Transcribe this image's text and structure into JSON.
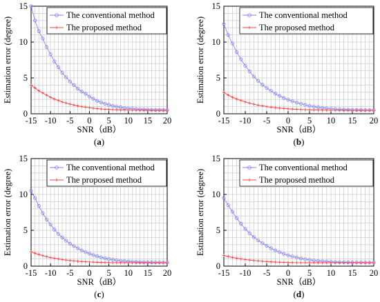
{
  "chart_data": [
    {
      "panel": "a",
      "type": "line",
      "caption": "(a)",
      "xlabel": "SNR（dB）",
      "ylabel": "Estimation error (degree)",
      "xlim": [
        -15,
        20
      ],
      "ylim": [
        0,
        15
      ],
      "xticks": [
        "-15",
        "-10",
        "-5",
        "0",
        "5",
        "10",
        "15",
        "20"
      ],
      "yticks": [
        "0",
        "5",
        "10",
        "15"
      ],
      "grid": true,
      "legend_position": "top-right",
      "x": [
        -15,
        -14,
        -13,
        -12,
        -11,
        -10,
        -9,
        -8,
        -7,
        -6,
        -5,
        -4,
        -3,
        -2,
        -1,
        0,
        1,
        2,
        3,
        4,
        5,
        6,
        7,
        8,
        9,
        10,
        11,
        12,
        13,
        14,
        15,
        16,
        17,
        18,
        19,
        20
      ],
      "series": [
        {
          "name": "The conventional method",
          "color": "#8080ff",
          "marker": "circle",
          "values": [
            15.0,
            13.0,
            11.5,
            10.5,
            9.3,
            8.3,
            7.3,
            6.5,
            5.7,
            5.1,
            4.5,
            4.0,
            3.5,
            3.1,
            2.8,
            2.4,
            2.1,
            1.8,
            1.6,
            1.4,
            1.25,
            1.1,
            1.0,
            0.9,
            0.8,
            0.75,
            0.7,
            0.66,
            0.63,
            0.6,
            0.58,
            0.56,
            0.55,
            0.54,
            0.53,
            0.52
          ]
        },
        {
          "name": "The proposed method",
          "color": "#ff4040",
          "marker": "plus",
          "values": [
            4.0,
            3.6,
            3.2,
            2.9,
            2.6,
            2.3,
            2.05,
            1.85,
            1.65,
            1.5,
            1.35,
            1.22,
            1.1,
            1.0,
            0.92,
            0.85,
            0.78,
            0.72,
            0.67,
            0.63,
            0.6,
            0.57,
            0.55,
            0.53,
            0.52,
            0.51,
            0.5,
            0.5,
            0.49,
            0.49,
            0.48,
            0.48,
            0.48,
            0.47,
            0.47,
            0.47
          ]
        }
      ]
    },
    {
      "panel": "b",
      "type": "line",
      "caption": "(b)",
      "xlabel": "SNR（dB）",
      "ylabel": "Estimation error (degree)",
      "xlim": [
        -15,
        20
      ],
      "ylim": [
        0,
        15
      ],
      "xticks": [
        "-15",
        "-10",
        "-5",
        "0",
        "5",
        "10",
        "15",
        "20"
      ],
      "yticks": [
        "0",
        "5",
        "10",
        "15"
      ],
      "grid": true,
      "legend_position": "top-right",
      "x": [
        -15,
        -14,
        -13,
        -12,
        -11,
        -10,
        -9,
        -8,
        -7,
        -6,
        -5,
        -4,
        -3,
        -2,
        -1,
        0,
        1,
        2,
        3,
        4,
        5,
        6,
        7,
        8,
        9,
        10,
        11,
        12,
        13,
        14,
        15,
        16,
        17,
        18,
        19,
        20
      ],
      "series": [
        {
          "name": "The conventional method",
          "color": "#8080ff",
          "marker": "circle",
          "values": [
            12.5,
            11.0,
            9.8,
            8.6,
            7.6,
            6.7,
            5.9,
            5.2,
            4.6,
            4.05,
            3.6,
            3.2,
            2.8,
            2.5,
            2.2,
            1.95,
            1.75,
            1.55,
            1.4,
            1.25,
            1.1,
            1.0,
            0.9,
            0.82,
            0.76,
            0.7,
            0.66,
            0.62,
            0.59,
            0.57,
            0.55,
            0.54,
            0.53,
            0.52,
            0.52,
            0.51
          ]
        },
        {
          "name": "The proposed method",
          "color": "#ff4040",
          "marker": "plus",
          "values": [
            3.0,
            2.6,
            2.3,
            2.05,
            1.85,
            1.65,
            1.48,
            1.33,
            1.2,
            1.1,
            1.0,
            0.92,
            0.85,
            0.79,
            0.74,
            0.69,
            0.65,
            0.62,
            0.59,
            0.57,
            0.55,
            0.53,
            0.52,
            0.51,
            0.5,
            0.49,
            0.49,
            0.48,
            0.48,
            0.48,
            0.47,
            0.47,
            0.47,
            0.47,
            0.47,
            0.47
          ]
        }
      ]
    },
    {
      "panel": "c",
      "type": "line",
      "caption": "(c)",
      "xlabel": "SNR（dB）",
      "ylabel": "Estimation error (degree)",
      "xlim": [
        -15,
        20
      ],
      "ylim": [
        0,
        15
      ],
      "xticks": [
        "-15",
        "-10",
        "-5",
        "0",
        "5",
        "10",
        "15",
        "20"
      ],
      "yticks": [
        "0",
        "5",
        "10",
        "15"
      ],
      "grid": true,
      "legend_position": "top-right",
      "x": [
        -15,
        -14,
        -13,
        -12,
        -11,
        -10,
        -9,
        -8,
        -7,
        -6,
        -5,
        -4,
        -3,
        -2,
        -1,
        0,
        1,
        2,
        3,
        4,
        5,
        6,
        7,
        8,
        9,
        10,
        11,
        12,
        13,
        14,
        15,
        16,
        17,
        18,
        19,
        20
      ],
      "series": [
        {
          "name": "The conventional method",
          "color": "#8080ff",
          "marker": "circle",
          "values": [
            10.5,
            9.5,
            8.4,
            7.4,
            6.5,
            5.8,
            5.1,
            4.5,
            4.0,
            3.55,
            3.15,
            2.8,
            2.5,
            2.2,
            1.95,
            1.75,
            1.55,
            1.38,
            1.23,
            1.1,
            1.0,
            0.9,
            0.82,
            0.75,
            0.7,
            0.65,
            0.62,
            0.59,
            0.57,
            0.55,
            0.54,
            0.53,
            0.52,
            0.52,
            0.51,
            0.51
          ]
        },
        {
          "name": "The proposed method",
          "color": "#ff4040",
          "marker": "plus",
          "values": [
            2.0,
            1.8,
            1.62,
            1.47,
            1.33,
            1.2,
            1.1,
            1.0,
            0.92,
            0.85,
            0.79,
            0.73,
            0.68,
            0.64,
            0.61,
            0.58,
            0.56,
            0.54,
            0.52,
            0.51,
            0.5,
            0.49,
            0.49,
            0.48,
            0.48,
            0.48,
            0.47,
            0.47,
            0.47,
            0.47,
            0.47,
            0.47,
            0.47,
            0.47,
            0.47,
            0.47
          ]
        }
      ]
    },
    {
      "panel": "d",
      "type": "line",
      "caption": "(d)",
      "xlabel": "SNR（dB）",
      "ylabel": "Estimation error (degree)",
      "xlim": [
        -15,
        20
      ],
      "ylim": [
        0,
        15
      ],
      "xticks": [
        "-15",
        "-10",
        "-5",
        "0",
        "5",
        "10",
        "15",
        "20"
      ],
      "yticks": [
        "0",
        "5",
        "10",
        "15"
      ],
      "grid": true,
      "legend_position": "top-right",
      "x": [
        -15,
        -14,
        -13,
        -12,
        -11,
        -10,
        -9,
        -8,
        -7,
        -6,
        -5,
        -4,
        -3,
        -2,
        -1,
        0,
        1,
        2,
        3,
        4,
        5,
        6,
        7,
        8,
        9,
        10,
        11,
        12,
        13,
        14,
        15,
        16,
        17,
        18,
        19,
        20
      ],
      "series": [
        {
          "name": "The conventional method",
          "color": "#8080ff",
          "marker": "circle",
          "values": [
            9.5,
            8.5,
            7.6,
            6.7,
            5.9,
            5.2,
            4.6,
            4.05,
            3.6,
            3.2,
            2.85,
            2.5,
            2.2,
            1.95,
            1.72,
            1.52,
            1.35,
            1.2,
            1.08,
            0.97,
            0.88,
            0.8,
            0.74,
            0.69,
            0.65,
            0.61,
            0.58,
            0.56,
            0.55,
            0.54,
            0.53,
            0.52,
            0.52,
            0.51,
            0.51,
            0.51
          ]
        },
        {
          "name": "The proposed method",
          "color": "#ff4040",
          "marker": "plus",
          "values": [
            1.5,
            1.35,
            1.22,
            1.1,
            1.0,
            0.92,
            0.85,
            0.79,
            0.73,
            0.68,
            0.64,
            0.6,
            0.57,
            0.55,
            0.53,
            0.51,
            0.5,
            0.49,
            0.49,
            0.48,
            0.48,
            0.48,
            0.47,
            0.47,
            0.47,
            0.47,
            0.47,
            0.47,
            0.47,
            0.47,
            0.47,
            0.47,
            0.47,
            0.47,
            0.47,
            0.47
          ]
        }
      ]
    }
  ]
}
